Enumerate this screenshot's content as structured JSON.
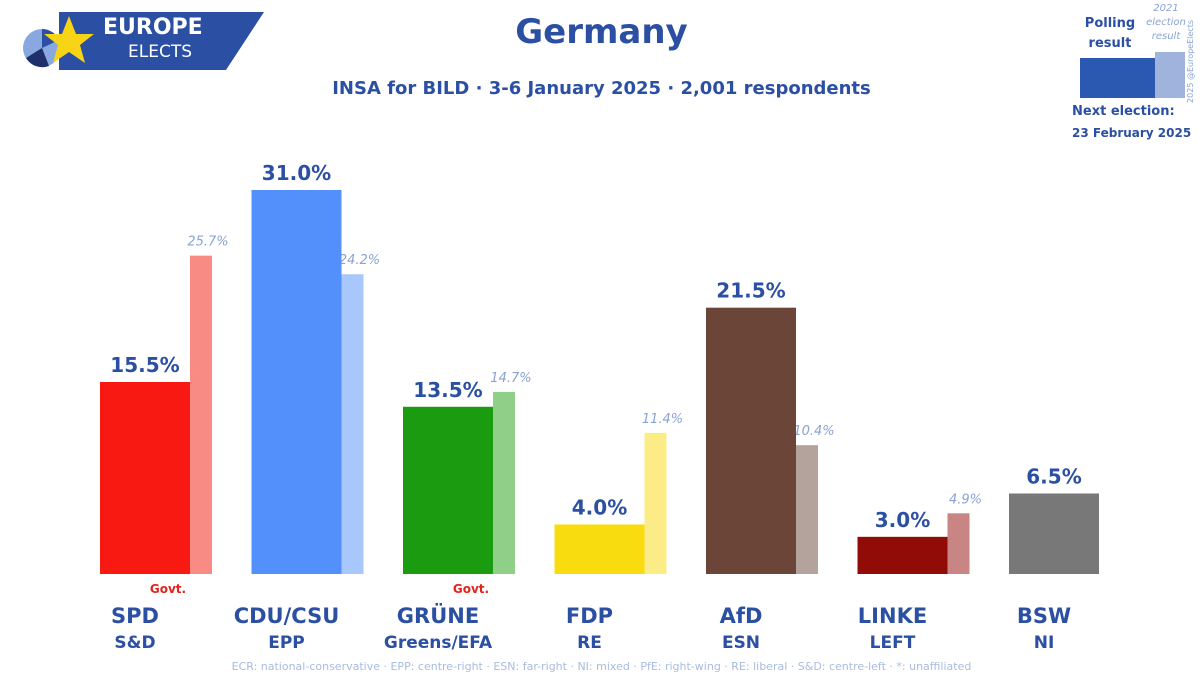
{
  "logo": {
    "line1": "EUROPE",
    "line2": "ELECTS"
  },
  "title": "Germany",
  "subtitle": "INSA for BILD · 3-6 January 2025 · 2,001 respondents",
  "legend": {
    "polling_label": "Polling result",
    "previous_label": "2021 election result",
    "credit": "2025 @EuropeElects",
    "main_color": "#2b58b0",
    "previous_color": "#9fb3dd"
  },
  "next_election": {
    "label": "Next election:",
    "date": "23 February 2025"
  },
  "chart_data": {
    "type": "bar",
    "categories": [
      "SPD",
      "CDU/CSU",
      "GRÜNE",
      "FDP",
      "AfD",
      "LINKE",
      "BSW"
    ],
    "groups": [
      "S&D",
      "EPP",
      "Greens/EFA",
      "RE",
      "ESN",
      "LEFT",
      "NI"
    ],
    "series": [
      {
        "name": "Polling result",
        "values": [
          15.5,
          31.0,
          13.5,
          4.0,
          21.5,
          3.0,
          6.5
        ]
      },
      {
        "name": "2021 election result",
        "values": [
          25.7,
          24.2,
          14.7,
          11.4,
          10.4,
          4.9,
          null
        ]
      }
    ],
    "value_labels": [
      "15.5%",
      "31.0%",
      "13.5%",
      "4.0%",
      "21.5%",
      "3.0%",
      "6.5%"
    ],
    "prev_labels": [
      "25.7%",
      "24.2%",
      "14.7%",
      "11.4%",
      "10.4%",
      "4.9%",
      ""
    ],
    "govt_labels": [
      "Govt.",
      "",
      "Govt.",
      "",
      "",
      "",
      ""
    ],
    "colors": [
      "#f81a12",
      "#5390fc",
      "#1b9b0f",
      "#f9dc10",
      "#6b4638",
      "#920c07",
      "#787878"
    ],
    "prev_colors": [
      "#f98b85",
      "#a8c7fc",
      "#8fcf87",
      "#fbec87",
      "#b4a39c",
      "#c88584",
      ""
    ],
    "ylim": [
      0,
      32
    ],
    "grid": false,
    "legend_position": "top-right"
  },
  "footnote": "ECR: national-conservative · EPP: centre-right · ESN: far-right · NI: mixed · PfE: right-wing · RE: liberal · S&D: centre-left · *: unaffiliated"
}
